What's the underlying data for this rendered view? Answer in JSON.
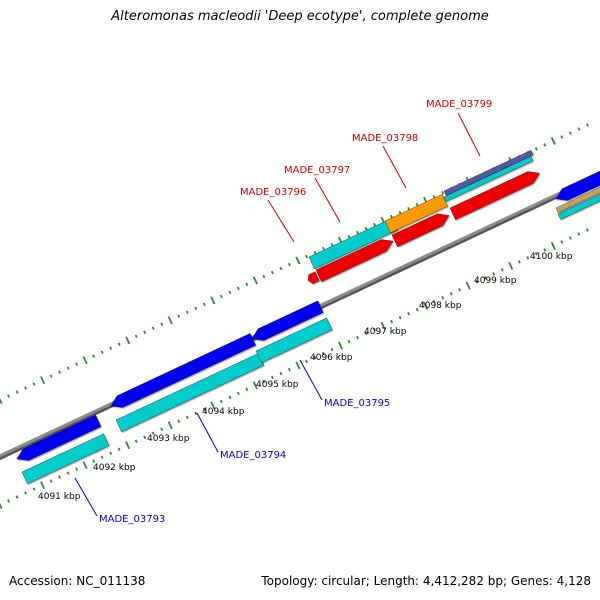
{
  "title": "Alteromonas macleodii 'Deep ecotype', complete genome",
  "footer": {
    "accession": "Accession: NC_011138",
    "summary": "Topology: circular; Length: 4,412,282 bp; Genes: 4,128"
  },
  "colors": {
    "backbone": "#8c8c8c",
    "tick": "#2e8b2e",
    "forward_label": "#cc0000",
    "reverse_label": "#0000cc",
    "cds_blue": "#0000ee",
    "cds_red": "#ee0000",
    "cds_cyan": "#00cccc",
    "cds_orange": "#ff9900",
    "cds_purple": "#5555aa",
    "cds_tan": "#c8a060"
  },
  "ticks": [
    "4091 kbp",
    "4092 kbp",
    "4093 kbp",
    "4094 kbp",
    "4095 kbp",
    "4096 kbp",
    "4097 kbp",
    "4098 kbp",
    "4099 kbp",
    "4100 kbp"
  ],
  "forward_genes": [
    {
      "name": "MADE_03796",
      "color": "red"
    },
    {
      "name": "MADE_03797",
      "color": "red"
    },
    {
      "name": "MADE_03798",
      "color": "red"
    },
    {
      "name": "MADE_03799",
      "color": "red"
    }
  ],
  "reverse_genes": [
    {
      "name": "MADE_03793",
      "color": "blue"
    },
    {
      "name": "MADE_03794",
      "color": "blue"
    },
    {
      "name": "MADE_03795",
      "color": "blue"
    }
  ]
}
